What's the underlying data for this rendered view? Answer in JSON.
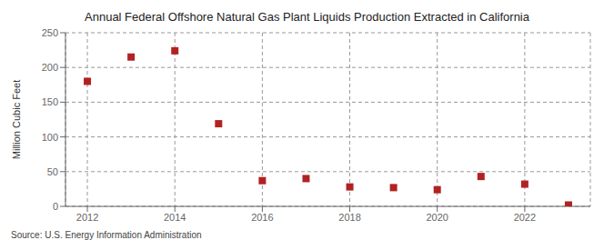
{
  "chart_data": {
    "type": "scatter",
    "title": "Annual Federal Offshore Natural Gas Plant Liquids Production Extracted in California",
    "y_label": "Million Cubic Feet",
    "source": "Source: U.S. Energy Information Administration",
    "x": [
      2012,
      2013,
      2014,
      2015,
      2016,
      2017,
      2018,
      2019,
      2020,
      2021,
      2022,
      2023
    ],
    "values": [
      180,
      215,
      224,
      119,
      37,
      40,
      28,
      27,
      24,
      43,
      32,
      2
    ],
    "xlim": [
      2011.5,
      2023.5
    ],
    "ylim": [
      0,
      250
    ],
    "xticks": [
      2012,
      2014,
      2016,
      2018,
      2020,
      2022
    ],
    "yticks": [
      0,
      50,
      100,
      150,
      200,
      250
    ],
    "color": "#b22222",
    "marker": "square",
    "grid": true
  }
}
